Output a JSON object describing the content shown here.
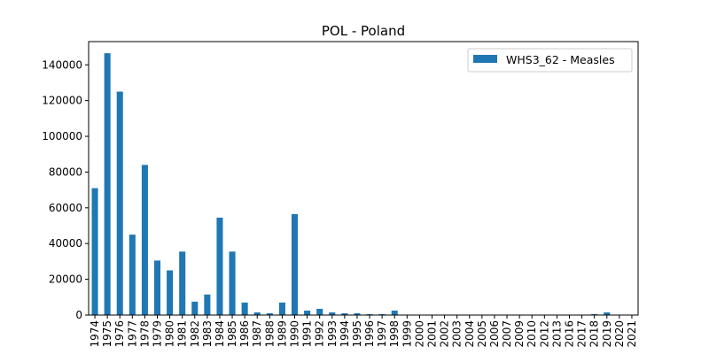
{
  "chart_data": {
    "type": "bar",
    "title": "POL - Poland",
    "xlabel": "",
    "ylabel": "",
    "ylim": [
      0,
      153000
    ],
    "yticks": [
      0,
      20000,
      40000,
      60000,
      80000,
      100000,
      120000,
      140000
    ],
    "grid": false,
    "legend_position": "top-right",
    "categories": [
      "1974",
      "1975",
      "1976",
      "1977",
      "1978",
      "1979",
      "1980",
      "1981",
      "1982",
      "1983",
      "1984",
      "1985",
      "1986",
      "1987",
      "1988",
      "1989",
      "1990",
      "1991",
      "1992",
      "1993",
      "1994",
      "1995",
      "1996",
      "1997",
      "1998",
      "1999",
      "2000",
      "2001",
      "2002",
      "2003",
      "2004",
      "2005",
      "2006",
      "2007",
      "2009",
      "2010",
      "2012",
      "2013",
      "2016",
      "2017",
      "2018",
      "2019",
      "2020",
      "2021"
    ],
    "series": [
      {
        "name": "WHS3_62 - Measles",
        "color": "#1f77b4",
        "values": [
          71000,
          146500,
          125000,
          45000,
          84000,
          30500,
          25000,
          35500,
          7500,
          11500,
          54500,
          35500,
          7000,
          1500,
          1000,
          7000,
          56500,
          2500,
          3500,
          1500,
          1000,
          1000,
          500,
          500,
          2500,
          100,
          100,
          50,
          50,
          50,
          50,
          50,
          50,
          50,
          50,
          50,
          50,
          50,
          50,
          50,
          500,
          1500,
          50,
          50
        ]
      }
    ]
  }
}
